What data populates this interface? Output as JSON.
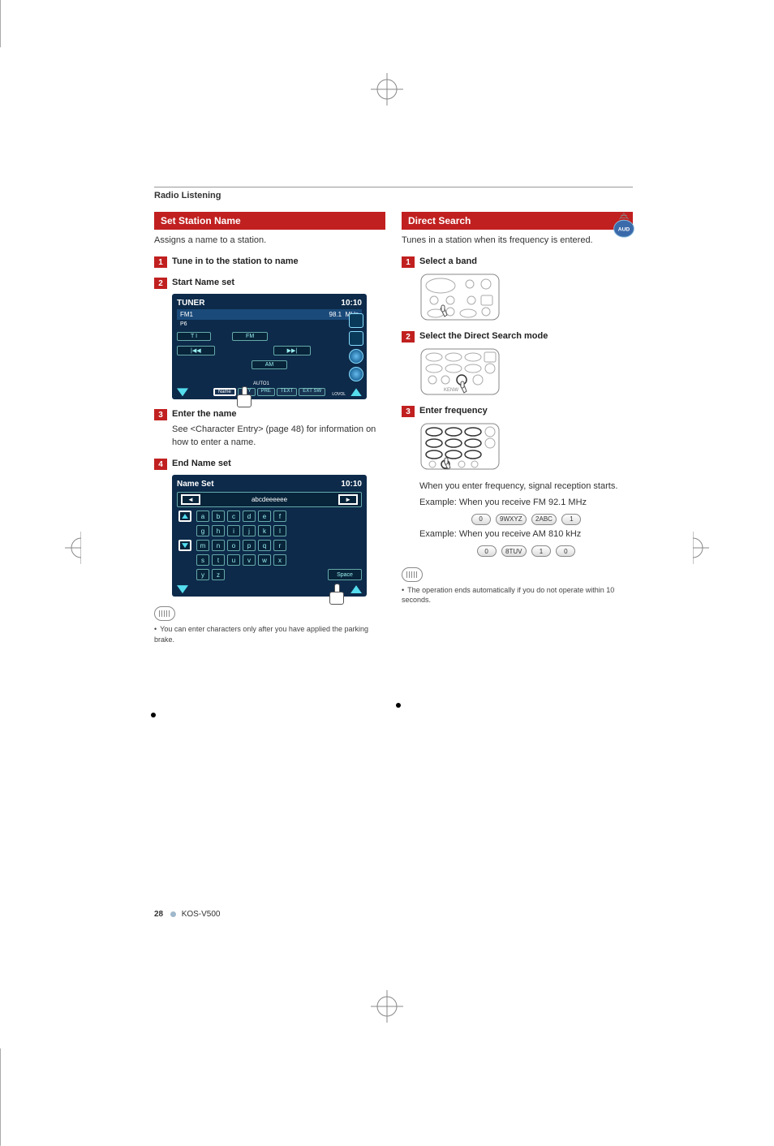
{
  "header": "Radio Listening",
  "left": {
    "section_title": "Set Station Name",
    "desc": "Assigns a name to a station.",
    "steps": {
      "s1_num": "1",
      "s1_label": "Tune in to the station to name",
      "s2_num": "2",
      "s2_label": "Start Name set",
      "s3_num": "3",
      "s3_label": "Enter the name",
      "s3_body": "See <Character Entry> (page 48) for information on how to enter a name.",
      "s4_num": "4",
      "s4_label": "End Name set"
    },
    "tuner_shot": {
      "title": "TUNER",
      "time": "10:10",
      "band": "FM1",
      "freq": "98.1",
      "unit": "MHz",
      "p_label": "P6",
      "btn_ti": "T I",
      "btn_fm": "FM",
      "btn_prev": "|◀◀",
      "btn_next": "▶▶|",
      "btn_am": "AM",
      "foot_name": "Name",
      "foot_pty": "PTY",
      "foot_pre": "PRE",
      "foot_text": "TEXT",
      "foot_ext": "EXT SW",
      "foot_auto": "AUTO1",
      "foot_lovol": "LOVOL",
      "colors": {
        "bg": "#0d2a4a",
        "accent": "#5de4f0"
      }
    },
    "nameset_shot": {
      "title": "Name Set",
      "time": "10:10",
      "input_text": "abcdeeeeee",
      "rows": [
        [
          "a",
          "b",
          "c",
          "d",
          "e",
          "f"
        ],
        [
          "g",
          "h",
          "i",
          "j",
          "k",
          "l"
        ],
        [
          "m",
          "n",
          "o",
          "p",
          "q",
          "r"
        ],
        [
          "s",
          "t",
          "u",
          "v",
          "w",
          "x"
        ],
        [
          "y",
          "z"
        ]
      ],
      "space": "Space"
    },
    "note": "You can enter characters only after you have applied the parking brake."
  },
  "right": {
    "section_title": "Direct Search",
    "desc": "Tunes in a station when its frequency is entered.",
    "badge": "AUD",
    "steps": {
      "s1_num": "1",
      "s1_label": "Select a band",
      "s2_num": "2",
      "s2_label": "Select the Direct Search mode",
      "s3_num": "3",
      "s3_label": "Enter frequency",
      "s3_b1": "When you enter frequency, signal reception starts.",
      "s3_b2": "Example: When you receive FM 92.1 MHz",
      "s3_b3": "Example: When you receive AM 810 kHz"
    },
    "pills_fm": [
      "0",
      "9WXYZ",
      "2ABC",
      "1"
    ],
    "pills_am": [
      "0",
      "8TUV",
      "1",
      "0"
    ],
    "note": "The operation ends automatically if you do not operate within 10 seconds."
  },
  "footer": {
    "page": "28",
    "model": "KOS-V500"
  }
}
